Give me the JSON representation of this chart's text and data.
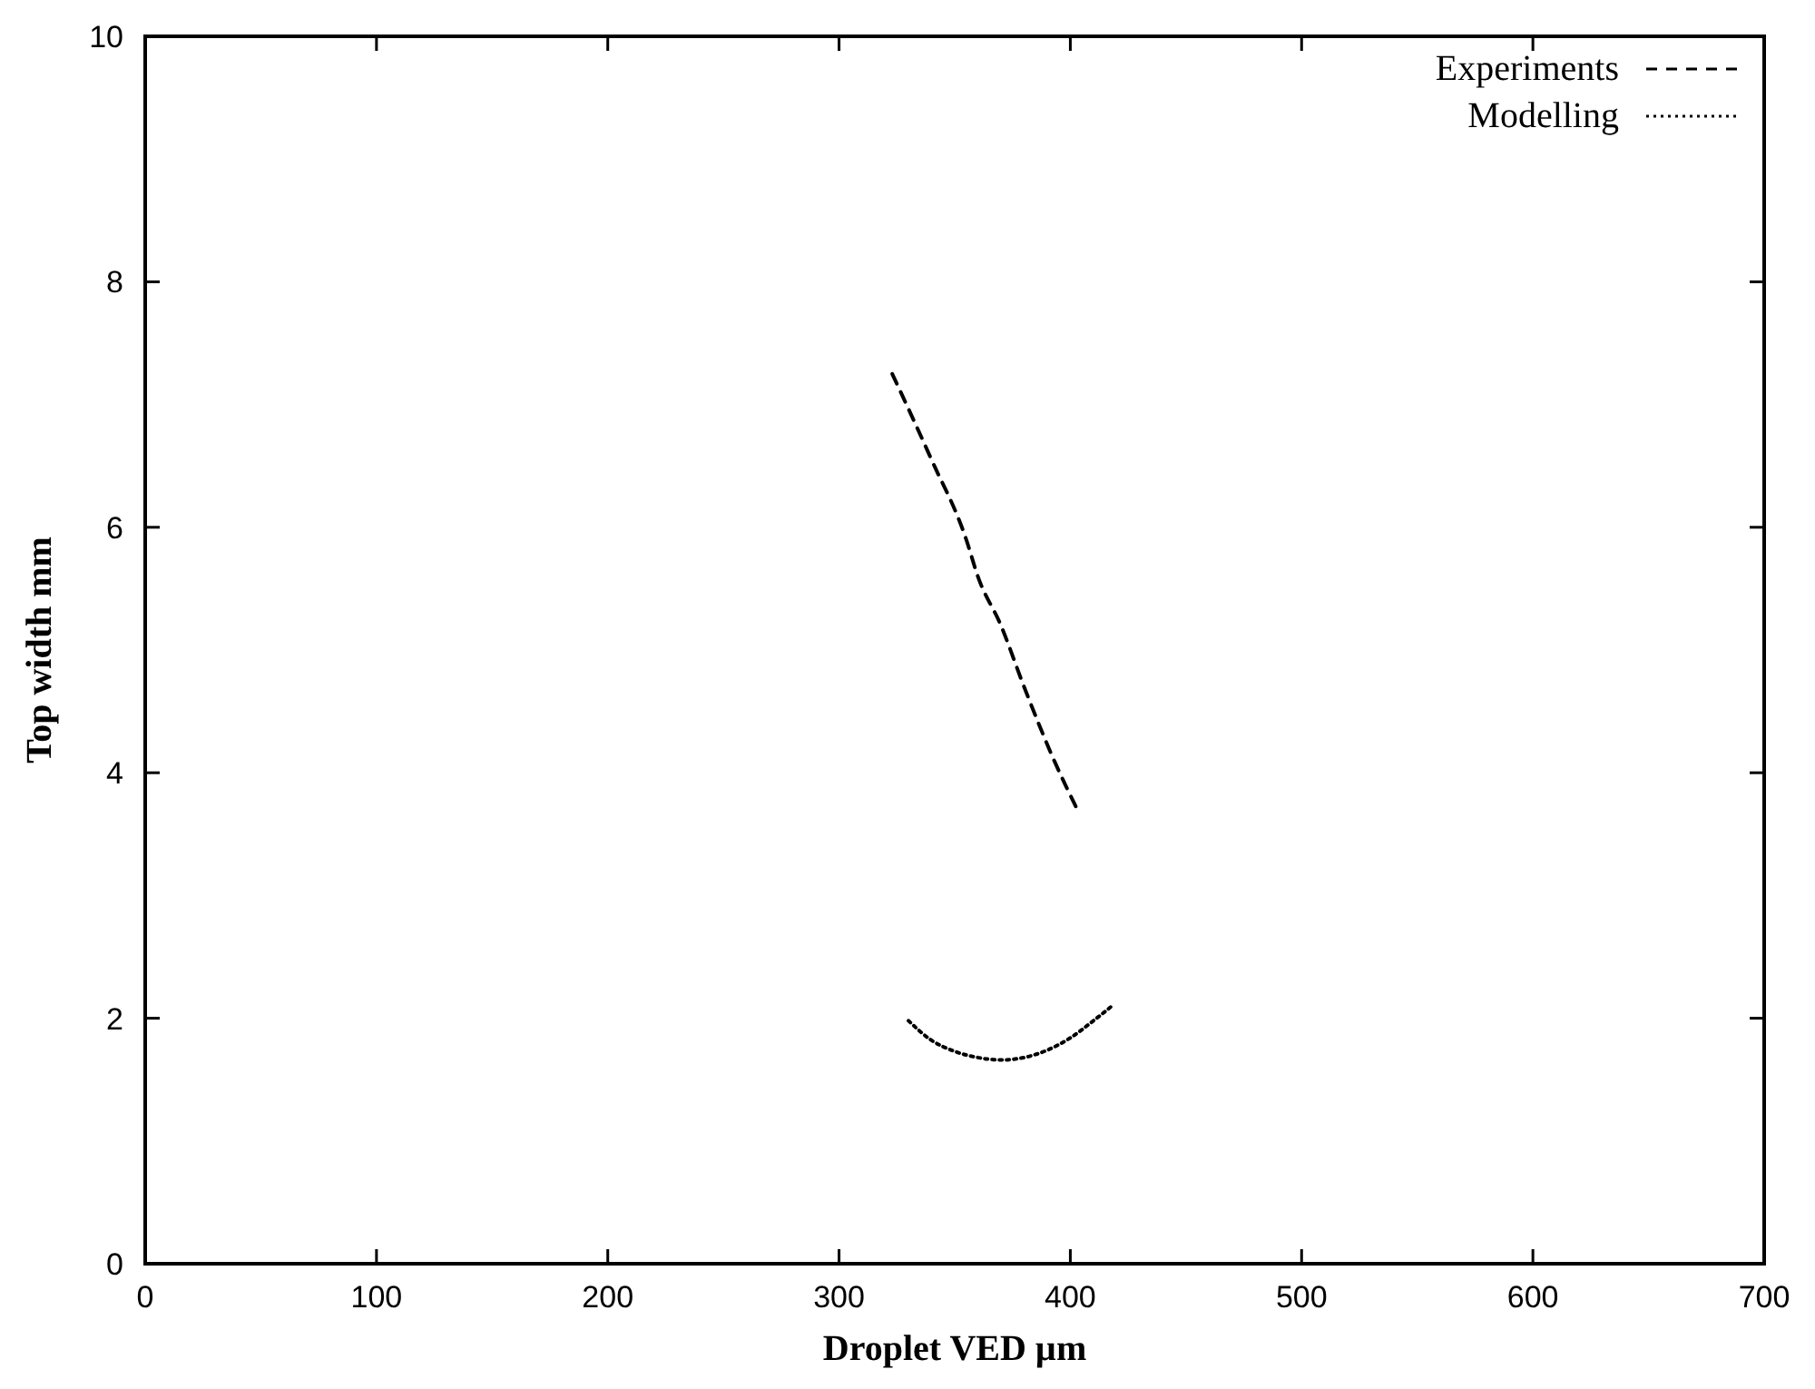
{
  "chart_data": {
    "type": "line",
    "xlabel": "Droplet VED µm",
    "ylabel": "Top width mm",
    "xlim": [
      0,
      700
    ],
    "ylim": [
      0,
      10
    ],
    "xticks": [
      0,
      100,
      200,
      300,
      400,
      500,
      600,
      700
    ],
    "yticks": [
      0,
      2,
      4,
      6,
      8,
      10
    ],
    "grid": false,
    "legend": "top right",
    "marker": "none",
    "series": [
      {
        "name": "Experiments",
        "color": "#000000",
        "line_style": "dashed",
        "x": [
          323,
          340,
          355,
          360,
          370,
          380,
          393,
          403
        ],
        "values": [
          7.25,
          6.55,
          5.9,
          5.6,
          5.2,
          4.7,
          4.1,
          3.7
        ]
      },
      {
        "name": "Modelling",
        "color": "#000000",
        "line_style": "dotted",
        "x": [
          330,
          340,
          350,
          360,
          370,
          380,
          390,
          400,
          410,
          418
        ],
        "values": [
          1.98,
          1.82,
          1.73,
          1.68,
          1.66,
          1.68,
          1.74,
          1.84,
          1.98,
          2.1
        ]
      }
    ]
  }
}
